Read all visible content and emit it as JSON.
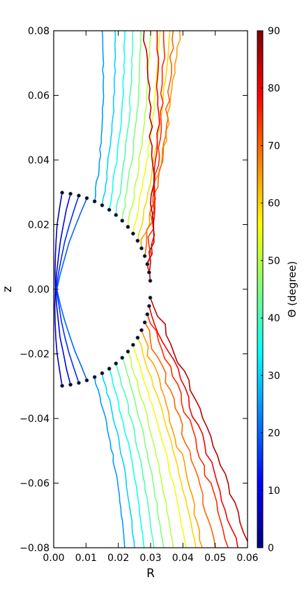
{
  "chart_data": {
    "type": "line",
    "title": "",
    "xlabel": "R",
    "ylabel": "z",
    "xlim": [
      0.0,
      0.06
    ],
    "ylim": [
      -0.08,
      0.08
    ],
    "xticks": [
      "0.00",
      "0.01",
      "0.02",
      "0.03",
      "0.04",
      "0.05",
      "0.06"
    ],
    "yticks": [
      "0.08",
      "0.06",
      "0.04",
      "0.02",
      "0.00",
      "−0.02",
      "−0.04",
      "−0.06",
      "−0.08"
    ],
    "grid": false,
    "legend": "none",
    "colorbar": {
      "label": "Θ (degree)",
      "range": [
        0,
        90
      ],
      "ticks": [
        "0",
        "10",
        "20",
        "30",
        "40",
        "50",
        "60",
        "70",
        "80",
        "90"
      ],
      "colormap": "jet",
      "colors": [
        "#00007f",
        "#0000ff",
        "#007fff",
        "#00ffff",
        "#7fff7f",
        "#ffff00",
        "#ff7f00",
        "#ff0000",
        "#7f0000"
      ]
    },
    "launch_radius": 0.03,
    "launch_angle_step_deg": 5,
    "series": [
      {
        "theta": 5,
        "points": [
          [
            0.0026,
            0.0299
          ],
          [
            0.0005,
            0.0
          ]
        ]
      },
      {
        "theta": 10,
        "points": [
          [
            0.0052,
            0.0295
          ],
          [
            0.0006,
            0.0
          ]
        ]
      },
      {
        "theta": 15,
        "points": [
          [
            0.0078,
            0.029
          ],
          [
            0.0008,
            0.0
          ]
        ]
      },
      {
        "theta": 20,
        "points": [
          [
            0.0103,
            0.0282
          ],
          [
            0.001,
            0.0
          ]
        ]
      },
      {
        "theta": 25,
        "points": [
          [
            0.0127,
            0.0272
          ],
          [
            0.015,
            0.08
          ]
        ]
      },
      {
        "theta": 30,
        "points": [
          [
            0.015,
            0.026
          ],
          [
            0.019,
            0.08
          ]
        ]
      },
      {
        "theta": 35,
        "points": [
          [
            0.0172,
            0.0246
          ],
          [
            0.022,
            0.08
          ]
        ]
      },
      {
        "theta": 40,
        "points": [
          [
            0.0193,
            0.023
          ],
          [
            0.0245,
            0.08
          ]
        ]
      },
      {
        "theta": 45,
        "points": [
          [
            0.0212,
            0.0212
          ],
          [
            0.027,
            0.08
          ]
        ]
      },
      {
        "theta": 50,
        "points": [
          [
            0.023,
            0.0193
          ],
          [
            0.03,
            0.08
          ]
        ]
      },
      {
        "theta": 55,
        "points": [
          [
            0.0246,
            0.0172
          ],
          [
            0.033,
            0.08
          ]
        ]
      },
      {
        "theta": 60,
        "points": [
          [
            0.026,
            0.015
          ],
          [
            0.036,
            0.08
          ]
        ]
      },
      {
        "theta": 65,
        "points": [
          [
            0.0272,
            0.0127
          ],
          [
            0.039,
            0.08
          ]
        ]
      },
      {
        "theta": 70,
        "points": [
          [
            0.0282,
            0.0103
          ],
          [
            0.037,
            0.08
          ]
        ]
      },
      {
        "theta": 75,
        "points": [
          [
            0.029,
            0.0078
          ],
          [
            0.034,
            0.08
          ]
        ]
      },
      {
        "theta": 80,
        "points": [
          [
            0.0295,
            0.0052
          ],
          [
            0.032,
            0.08
          ]
        ]
      },
      {
        "theta": 85,
        "points": [
          [
            0.0299,
            0.0026
          ],
          [
            0.028,
            0.08
          ]
        ]
      },
      {
        "theta": 95,
        "points": [
          [
            0.0299,
            -0.0026
          ],
          [
            0.06,
            -0.078
          ]
        ]
      },
      {
        "theta": 100,
        "points": [
          [
            0.0295,
            -0.0052
          ],
          [
            0.057,
            -0.08
          ]
        ]
      },
      {
        "theta": 105,
        "points": [
          [
            0.029,
            -0.0078
          ],
          [
            0.054,
            -0.08
          ]
        ]
      },
      {
        "theta": 110,
        "points": [
          [
            0.0282,
            -0.0103
          ],
          [
            0.05,
            -0.08
          ]
        ]
      },
      {
        "theta": 115,
        "points": [
          [
            0.0272,
            -0.0127
          ],
          [
            0.046,
            -0.08
          ]
        ]
      },
      {
        "theta": 120,
        "points": [
          [
            0.026,
            -0.015
          ],
          [
            0.044,
            -0.08
          ]
        ]
      },
      {
        "theta": 125,
        "points": [
          [
            0.0246,
            -0.0172
          ],
          [
            0.041,
            -0.08
          ]
        ]
      },
      {
        "theta": 130,
        "points": [
          [
            0.023,
            -0.0193
          ],
          [
            0.037,
            -0.08
          ]
        ]
      },
      {
        "theta": 135,
        "points": [
          [
            0.0212,
            -0.0212
          ],
          [
            0.034,
            -0.08
          ]
        ]
      },
      {
        "theta": 140,
        "points": [
          [
            0.0193,
            -0.023
          ],
          [
            0.031,
            -0.08
          ]
        ]
      },
      {
        "theta": 145,
        "points": [
          [
            0.0172,
            -0.0246
          ],
          [
            0.028,
            -0.08
          ]
        ]
      },
      {
        "theta": 150,
        "points": [
          [
            0.015,
            -0.026
          ],
          [
            0.025,
            -0.08
          ]
        ]
      },
      {
        "theta": 155,
        "points": [
          [
            0.0127,
            -0.0272
          ],
          [
            0.022,
            -0.08
          ]
        ]
      },
      {
        "theta": 160,
        "points": [
          [
            0.0103,
            -0.0282
          ],
          [
            0.001,
            0.0
          ]
        ]
      },
      {
        "theta": 165,
        "points": [
          [
            0.0078,
            -0.029
          ],
          [
            0.0008,
            0.0
          ]
        ]
      },
      {
        "theta": 170,
        "points": [
          [
            0.0052,
            -0.0295
          ],
          [
            0.0006,
            0.0
          ]
        ]
      },
      {
        "theta": 175,
        "points": [
          [
            0.0026,
            -0.0299
          ],
          [
            0.0005,
            0.0
          ]
        ]
      }
    ]
  }
}
